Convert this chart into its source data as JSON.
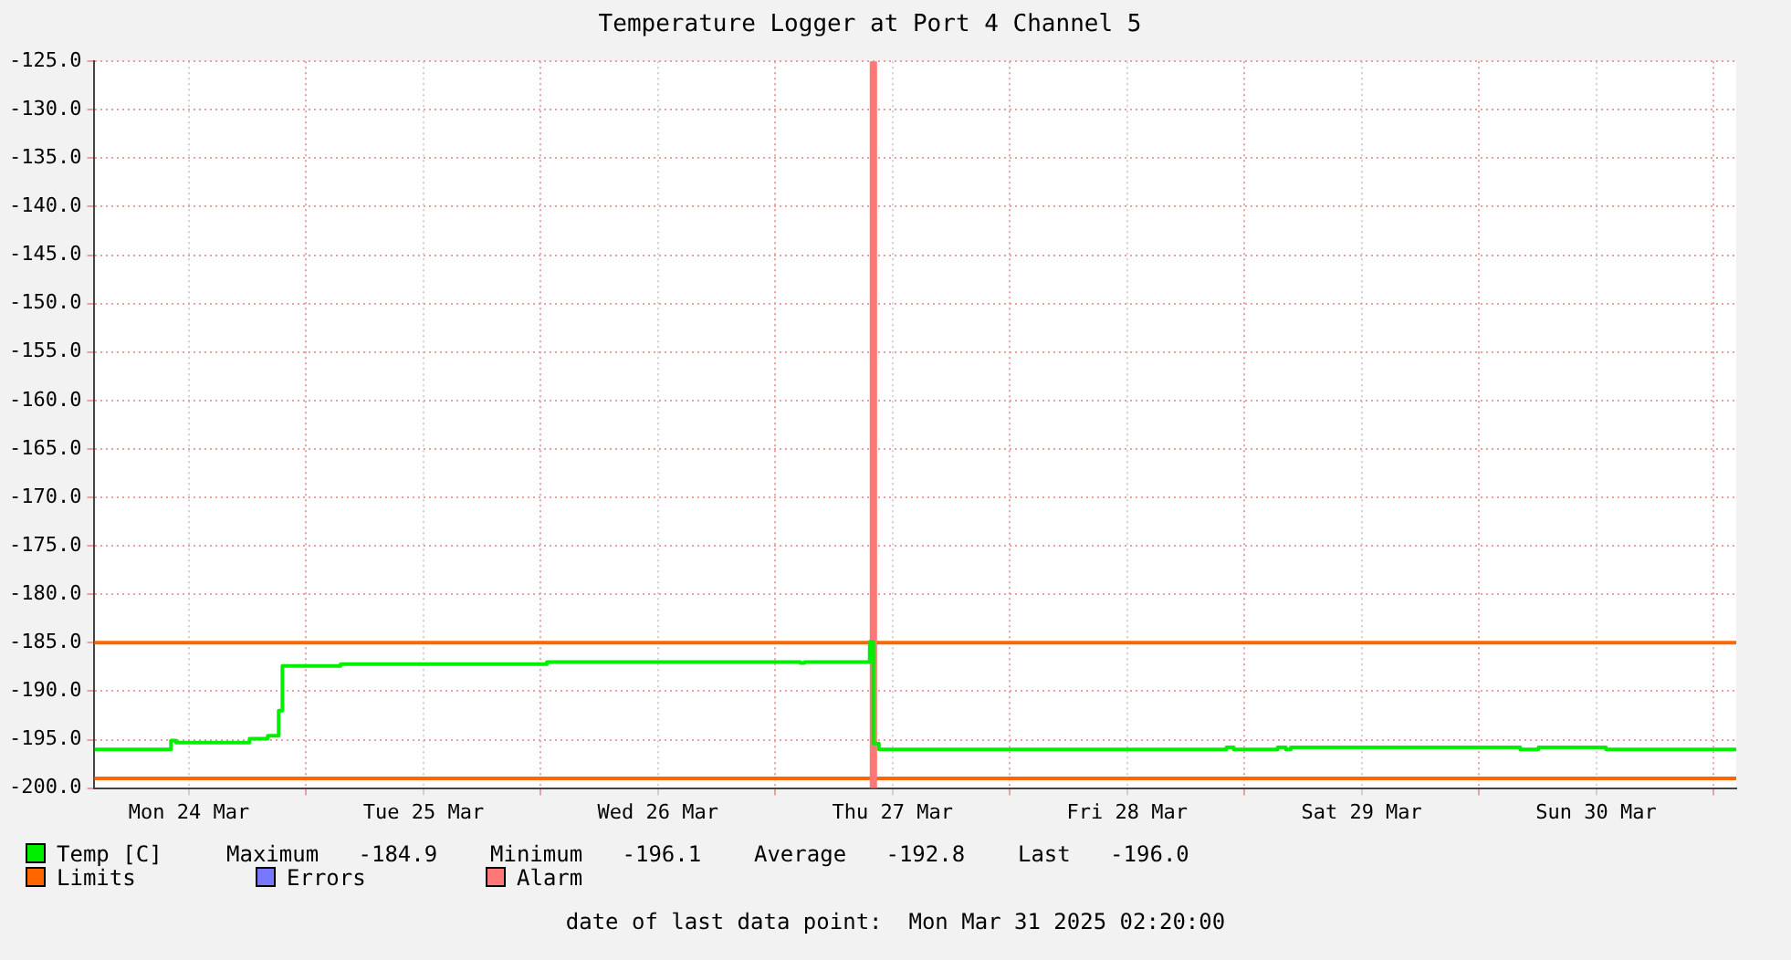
{
  "chart_data": {
    "type": "step",
    "title": "Temperature Logger at Port 4 Channel 5",
    "x": [
      "2025-03-24T02:20",
      "2025-03-24T10:10",
      "2025-03-24T10:40",
      "2025-03-24T18:12",
      "2025-03-24T20:04",
      "2025-03-24T21:11",
      "2025-03-24T21:34",
      "2025-03-25T03:32",
      "2025-03-26T00:38",
      "2025-03-27T02:34",
      "2025-03-27T03:00",
      "2025-03-27T09:40",
      "2025-03-27T10:02",
      "2025-03-27T10:36",
      "2025-03-28T22:10",
      "2025-03-28T22:55",
      "2025-03-29T03:24",
      "2025-03-29T04:15",
      "2025-03-29T04:45",
      "2025-03-30T04:14",
      "2025-03-30T06:06",
      "2025-03-30T13:00",
      "2025-03-31T02:20"
    ],
    "series": [
      {
        "name": "Temp [C]",
        "color": "#00ee00",
        "values": [
          -196.0,
          -195.1,
          -195.3,
          -194.9,
          -194.6,
          -192.0,
          -187.4,
          -187.2,
          -187.0,
          -187.1,
          -187.0,
          -184.9,
          -195.4,
          -196.0,
          -195.8,
          -196.0,
          -195.8,
          -196.0,
          -195.8,
          -196.0,
          -195.8,
          -196.0,
          -196.0
        ]
      },
      {
        "name": "Errors",
        "color": "#7777ff",
        "values": [
          null,
          null,
          null,
          null,
          null,
          null,
          null,
          null,
          null,
          null,
          null,
          null,
          null,
          null,
          null,
          null,
          null,
          null,
          null,
          null,
          null,
          null,
          null
        ]
      }
    ],
    "ref_lines": [
      {
        "axis": "y",
        "value": -185,
        "label": "Limits",
        "color": "#ff6600"
      },
      {
        "axis": "y",
        "value": -199,
        "color": "#ff6600"
      }
    ],
    "bands": [
      {
        "axis": "x",
        "from": "2025-03-27T09:40",
        "to": "2025-03-27T10:25",
        "label": "Alarm",
        "color": "#ff7777"
      }
    ],
    "xlim": [
      "2025-03-24T02:20",
      "2025-03-31T02:20"
    ],
    "xticks": [
      {
        "value": "2025-03-24T12:00",
        "label": "Mon 24 Mar"
      },
      {
        "value": "2025-03-25T00:00",
        "label": null
      },
      {
        "value": "2025-03-25T12:00",
        "label": "Tue 25 Mar"
      },
      {
        "value": "2025-03-26T00:00",
        "label": null
      },
      {
        "value": "2025-03-26T12:00",
        "label": "Wed 26 Mar"
      },
      {
        "value": "2025-03-27T00:00",
        "label": null
      },
      {
        "value": "2025-03-27T12:00",
        "label": "Thu 27 Mar"
      },
      {
        "value": "2025-03-28T00:00",
        "label": null
      },
      {
        "value": "2025-03-28T12:00",
        "label": "Fri 28 Mar"
      },
      {
        "value": "2025-03-29T00:00",
        "label": null
      },
      {
        "value": "2025-03-29T12:00",
        "label": "Sat 29 Mar"
      },
      {
        "value": "2025-03-30T00:00",
        "label": null
      },
      {
        "value": "2025-03-30T12:00",
        "label": "Sun 30 Mar"
      },
      {
        "value": "2025-03-31T00:00",
        "label": null
      }
    ],
    "ylim": [
      -200,
      -125
    ],
    "yticks": [
      {
        "value": -200,
        "label": "-200.0"
      },
      {
        "value": -195,
        "label": "-195.0"
      },
      {
        "value": -190,
        "label": "-190.0"
      },
      {
        "value": -185,
        "label": "-185.0"
      },
      {
        "value": -180,
        "label": "-180.0"
      },
      {
        "value": -175,
        "label": "-175.0"
      },
      {
        "value": -170,
        "label": "-170.0"
      },
      {
        "value": -165,
        "label": "-165.0"
      },
      {
        "value": -160,
        "label": "-160.0"
      },
      {
        "value": -155,
        "label": "-155.0"
      },
      {
        "value": -150,
        "label": "-150.0"
      },
      {
        "value": -145,
        "label": "-145.0"
      },
      {
        "value": -140,
        "label": "-140.0"
      },
      {
        "value": -135,
        "label": "-135.0"
      },
      {
        "value": -130,
        "label": "-130.0"
      },
      {
        "value": -125,
        "label": "-125.0"
      }
    ],
    "grid": true,
    "legend": "bottom",
    "marker": "none",
    "annotations": [
      "Maximum   -184.9    Minimum   -196.1    Average   -192.8    Last   -196.0",
      "date of last data point:  Mon Mar 31 2025 02:20:00"
    ]
  }
}
